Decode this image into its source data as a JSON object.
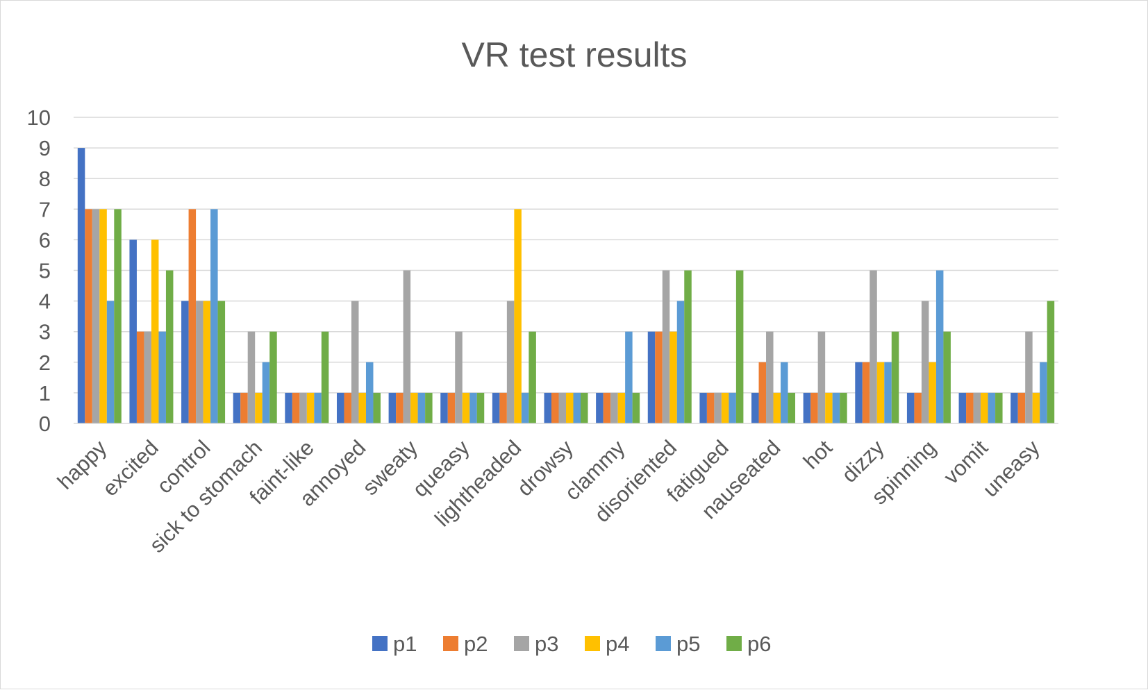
{
  "chart_data": {
    "type": "bar",
    "title": "VR test results",
    "xlabel": "",
    "ylabel": "",
    "ylim": [
      0,
      10
    ],
    "yticks": [
      0,
      1,
      2,
      3,
      4,
      5,
      6,
      7,
      8,
      9,
      10
    ],
    "grid": true,
    "legend_position": "bottom",
    "categories": [
      "happy",
      "excited",
      "control",
      "sick to stomach",
      "faint-like",
      "annoyed",
      "sweaty",
      "queasy",
      "lightheaded",
      "drowsy",
      "clammy",
      "disoriented",
      "fatigued",
      "nauseated",
      "hot",
      "dizzy",
      "spinning",
      "vomit",
      "uneasy"
    ],
    "series": [
      {
        "name": "p1",
        "color": "#4472C4",
        "values": [
          9,
          6,
          4,
          1,
          1,
          1,
          1,
          1,
          1,
          1,
          1,
          3,
          1,
          1,
          1,
          2,
          1,
          1,
          1
        ]
      },
      {
        "name": "p2",
        "color": "#ED7D31",
        "values": [
          7,
          3,
          7,
          1,
          1,
          1,
          1,
          1,
          1,
          1,
          1,
          3,
          1,
          2,
          1,
          2,
          1,
          1,
          1
        ]
      },
      {
        "name": "p3",
        "color": "#A5A5A5",
        "values": [
          7,
          3,
          4,
          3,
          1,
          4,
          5,
          3,
          4,
          1,
          1,
          5,
          1,
          3,
          3,
          5,
          4,
          1,
          3
        ]
      },
      {
        "name": "p4",
        "color": "#FFC000",
        "values": [
          7,
          6,
          4,
          1,
          1,
          1,
          1,
          1,
          7,
          1,
          1,
          3,
          1,
          1,
          1,
          2,
          2,
          1,
          1
        ]
      },
      {
        "name": "p5",
        "color": "#5B9BD5",
        "values": [
          4,
          3,
          7,
          2,
          1,
          2,
          1,
          1,
          1,
          1,
          3,
          4,
          1,
          2,
          1,
          2,
          5,
          1,
          2
        ]
      },
      {
        "name": "p6",
        "color": "#70AD47",
        "values": [
          7,
          5,
          4,
          3,
          3,
          1,
          1,
          1,
          3,
          1,
          1,
          5,
          5,
          1,
          1,
          3,
          3,
          1,
          4
        ]
      }
    ]
  }
}
